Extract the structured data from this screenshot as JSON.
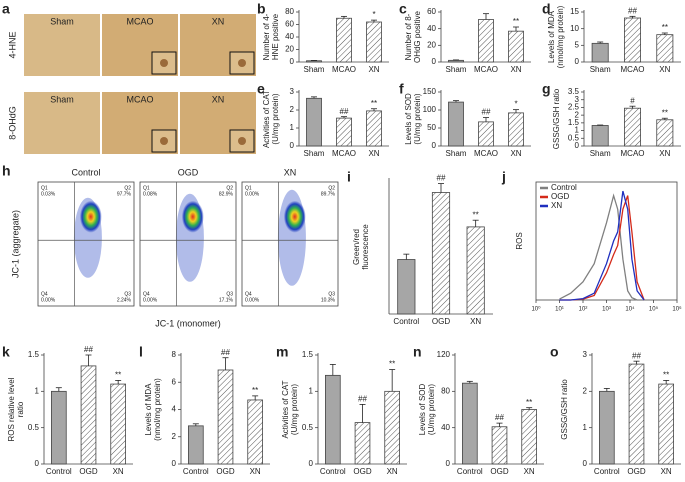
{
  "micrographs": {
    "label": "a",
    "columns": [
      "Sham",
      "MCAO",
      "XN"
    ],
    "rows": [
      "4-HNE",
      "8-OHdG"
    ]
  },
  "flow_cytometry": {
    "label": "h",
    "xlabel": "JC-1 (monomer)",
    "ylabel": "JC-1 (aggregate)",
    "plots": [
      {
        "title": "Control",
        "quadrants": [
          {
            "name": "Q1",
            "value": "0.03%"
          },
          {
            "name": "Q2",
            "value": "97.7%"
          },
          {
            "name": "Q4",
            "value": "0.00%"
          },
          {
            "name": "Q3",
            "value": "2.24%"
          }
        ]
      },
      {
        "title": "OGD",
        "quadrants": [
          {
            "name": "Q1",
            "value": "0.08%"
          },
          {
            "name": "Q2",
            "value": "82.9%"
          },
          {
            "name": "Q4",
            "value": "0.00%"
          },
          {
            "name": "Q3",
            "value": "17.1%"
          }
        ]
      },
      {
        "title": "XN",
        "quadrants": [
          {
            "name": "Q1",
            "value": "0.00%"
          },
          {
            "name": "Q2",
            "value": "89.7%"
          },
          {
            "name": "Q4",
            "value": "0.00%"
          },
          {
            "name": "Q3",
            "value": "10.3%"
          }
        ]
      }
    ]
  },
  "chart_data": [
    {
      "type": "bar",
      "label": "b",
      "ylabel": [
        "Number of 4-",
        "HNE positive"
      ],
      "categories": [
        "Sham",
        "MCAO",
        "XN"
      ],
      "values": [
        2,
        70,
        64
      ],
      "errors": [
        0.5,
        3,
        3
      ],
      "annotations": [
        null,
        null,
        "*"
      ],
      "color": "#a6a6a6",
      "hatched": [
        false,
        true,
        true
      ],
      "ylim": [
        0,
        80
      ],
      "yticks": [
        0,
        20,
        40,
        60,
        80
      ]
    },
    {
      "type": "bar",
      "label": "c",
      "ylabel": [
        "Number of 8-",
        "OHdG positive"
      ],
      "categories": [
        "Sham",
        "MCAO",
        "XN"
      ],
      "values": [
        2,
        51,
        37
      ],
      "errors": [
        0.5,
        7,
        5
      ],
      "annotations": [
        null,
        null,
        "**"
      ],
      "color": "#a6a6a6",
      "hatched": [
        false,
        true,
        true
      ],
      "ylim": [
        0,
        60
      ],
      "yticks": [
        0,
        20,
        40,
        60
      ]
    },
    {
      "type": "bar",
      "label": "d",
      "ylabel": [
        "Levels of MDA",
        "(nmol/mg protein)"
      ],
      "categories": [
        "Sham",
        "MCAO",
        "XN"
      ],
      "values": [
        5.6,
        13.2,
        8.2
      ],
      "errors": [
        0.4,
        0.5,
        0.5
      ],
      "annotations": [
        null,
        "##",
        "**"
      ],
      "color": "#a6a6a6",
      "hatched": [
        false,
        true,
        true
      ],
      "ylim": [
        0,
        15
      ],
      "yticks": [
        0,
        5,
        10,
        15
      ]
    },
    {
      "type": "bar",
      "label": "e",
      "ylabel": [
        "Activities of CAT",
        "(U/mg protein)"
      ],
      "categories": [
        "Sham",
        "MCAO",
        "XN"
      ],
      "values": [
        2.65,
        1.55,
        1.95
      ],
      "errors": [
        0.08,
        0.08,
        0.12
      ],
      "annotations": [
        null,
        "##",
        "**"
      ],
      "color": "#a6a6a6",
      "hatched": [
        false,
        true,
        true
      ],
      "ylim": [
        0,
        3
      ],
      "yticks": [
        0,
        1,
        2,
        3
      ]
    },
    {
      "type": "bar",
      "label": "f",
      "ylabel": [
        "Levels of SOD",
        "(U/mg protein)"
      ],
      "categories": [
        "Sham",
        "MCAO",
        "XN"
      ],
      "values": [
        122,
        67,
        92
      ],
      "errors": [
        4,
        12,
        9
      ],
      "annotations": [
        null,
        "##",
        "*"
      ],
      "color": "#a6a6a6",
      "hatched": [
        false,
        true,
        true
      ],
      "ylim": [
        0,
        150
      ],
      "yticks": [
        0,
        50,
        100,
        150
      ]
    },
    {
      "type": "bar",
      "label": "g",
      "ylabel": [
        "GSSG/GSH ratio"
      ],
      "categories": [
        "Sham",
        "MCAO",
        "XN"
      ],
      "values": [
        1.33,
        2.45,
        1.7
      ],
      "errors": [
        0.03,
        0.13,
        0.1
      ],
      "annotations": [
        null,
        "#",
        "**"
      ],
      "color": "#a6a6a6",
      "hatched": [
        false,
        true,
        true
      ],
      "ylim": [
        0,
        3.5
      ],
      "yticks": [
        0,
        0.5,
        1,
        1.5,
        2,
        2.5,
        3,
        3.5
      ]
    },
    {
      "type": "bar",
      "label": "i",
      "ylabel": [
        "Green/red",
        "fluorescence"
      ],
      "categories": [
        "Control",
        "OGD",
        "XN"
      ],
      "values": [
        1.22,
        2.72,
        1.95
      ],
      "errors": [
        0.12,
        0.2,
        0.15
      ],
      "annotations": [
        null,
        "##",
        "**"
      ],
      "color": "#a6a6a6",
      "hatched": [
        false,
        true,
        true
      ],
      "ylim": [
        0,
        3
      ]
    },
    {
      "type": "line",
      "label": "j",
      "ylabel": "ROS",
      "log_x": true,
      "xlim": [
        1,
        1000000
      ],
      "ylim": [
        0,
        260
      ],
      "xticks": [
        {
          "value": 1,
          "label": "10⁰"
        },
        {
          "value": 10,
          "label": "10¹"
        },
        {
          "value": 100,
          "label": "10²"
        },
        {
          "value": 1000,
          "label": "10³"
        },
        {
          "value": 10000,
          "label": "10⁴"
        },
        {
          "value": 100000,
          "label": "10⁵"
        },
        {
          "value": 1000000,
          "label": "10⁶"
        }
      ],
      "x": [
        10,
        30,
        100,
        300,
        1000,
        2000,
        3000,
        5000,
        8000,
        12000,
        20000,
        40000
      ],
      "series": [
        {
          "name": "Control",
          "color": "#808080",
          "values": [
            2,
            15,
            40,
            80,
            170,
            230,
            200,
            90,
            20,
            5,
            0,
            0
          ]
        },
        {
          "name": "OGD",
          "color": "#d42a1a",
          "values": [
            0,
            0,
            2,
            10,
            60,
            100,
            120,
            200,
            230,
            150,
            40,
            0
          ]
        },
        {
          "name": "XN",
          "color": "#1f2fbf",
          "values": [
            0,
            0,
            3,
            15,
            80,
            130,
            150,
            240,
            200,
            90,
            20,
            0
          ]
        }
      ],
      "legend": "upper-left"
    },
    {
      "type": "bar",
      "label": "k",
      "ylabel": [
        "ROS relative level",
        "ratio"
      ],
      "categories": [
        "Control",
        "OGD",
        "XN"
      ],
      "values": [
        1.0,
        1.35,
        1.1
      ],
      "errors": [
        0.05,
        0.15,
        0.05
      ],
      "annotations": [
        null,
        "##",
        "**"
      ],
      "color": "#a6a6a6",
      "hatched": [
        false,
        true,
        true
      ],
      "ylim": [
        0,
        1.5
      ],
      "yticks": [
        0,
        0.5,
        1,
        1.5
      ]
    },
    {
      "type": "bar",
      "label": "l",
      "ylabel": [
        "Levels of MDA",
        "(nmol/mg protein)"
      ],
      "categories": [
        "Control",
        "OGD",
        "XN"
      ],
      "values": [
        2.8,
        6.9,
        4.7
      ],
      "errors": [
        0.15,
        0.9,
        0.3
      ],
      "annotations": [
        null,
        "##",
        "**"
      ],
      "color": "#a6a6a6",
      "hatched": [
        false,
        true,
        true
      ],
      "ylim": [
        0,
        8
      ],
      "yticks": [
        0,
        2,
        4,
        6,
        8
      ]
    },
    {
      "type": "bar",
      "label": "m",
      "ylabel": [
        "Activities of CAT",
        "(U/mg protein)"
      ],
      "categories": [
        "Control",
        "OGD",
        "XN"
      ],
      "values": [
        1.22,
        0.57,
        1.0
      ],
      "errors": [
        0.15,
        0.25,
        0.3
      ],
      "annotations": [
        null,
        "##",
        "**"
      ],
      "color": "#a6a6a6",
      "hatched": [
        false,
        true,
        true
      ],
      "ylim": [
        0,
        1.5
      ],
      "yticks": [
        0,
        0.5,
        1,
        1.5
      ]
    },
    {
      "type": "bar",
      "label": "n",
      "ylabel": [
        "Levels of SOD",
        "(U/mg protein)"
      ],
      "categories": [
        "Control",
        "OGD",
        "XN"
      ],
      "values": [
        89,
        41,
        60
      ],
      "errors": [
        2,
        4,
        2
      ],
      "annotations": [
        null,
        "##",
        "**"
      ],
      "color": "#a6a6a6",
      "hatched": [
        false,
        true,
        true
      ],
      "ylim": [
        0,
        120
      ],
      "yticks": [
        0,
        40,
        80,
        120
      ]
    },
    {
      "type": "bar",
      "label": "o",
      "ylabel": [
        "GSSG/GSH ratio"
      ],
      "categories": [
        "Control",
        "OGD",
        "XN"
      ],
      "values": [
        2.0,
        2.75,
        2.2
      ],
      "errors": [
        0.08,
        0.08,
        0.1
      ],
      "annotations": [
        null,
        "##",
        "**"
      ],
      "color": "#a6a6a6",
      "hatched": [
        false,
        true,
        true
      ],
      "ylim": [
        0,
        3
      ],
      "yticks": [
        0,
        1,
        2,
        3
      ]
    }
  ]
}
